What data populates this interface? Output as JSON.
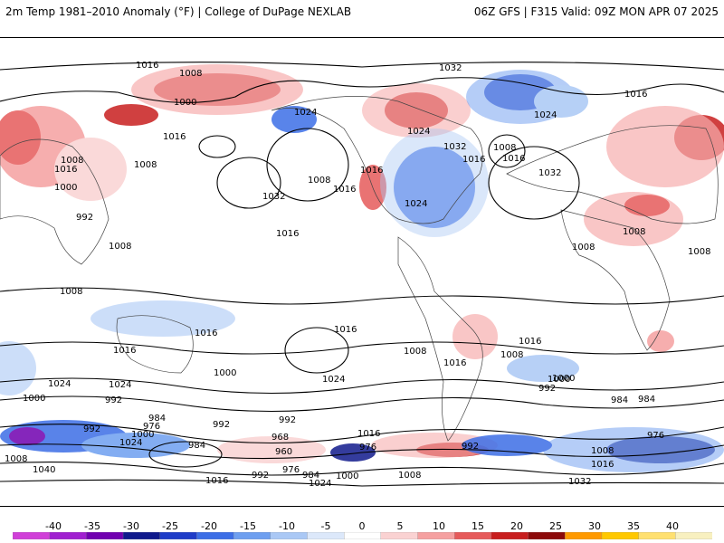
{
  "header": {
    "title_left": "2m Temp 1981–2010 Anomaly (°F) | College of DuPage NEXLAB",
    "title_right": "06Z GFS | F315 Valid: 09Z MON APR 07 2025"
  },
  "colorbar": {
    "ticks": [
      "-40",
      "-35",
      "-30",
      "-25",
      "-20",
      "-15",
      "-10",
      "-5",
      "0",
      "5",
      "10",
      "15",
      "20",
      "25",
      "30",
      "35",
      "40"
    ],
    "colors": [
      "#d040d8",
      "#a020d0",
      "#7000b0",
      "#101a8c",
      "#1e3cc8",
      "#3c6ee6",
      "#6e9ff0",
      "#aac8f5",
      "#dce8fa",
      "#ffffff",
      "#fad2d2",
      "#f5a0a0",
      "#e65a5a",
      "#c81e1e",
      "#8c0a0a",
      "#ff9a00",
      "#ffc800",
      "#ffe070",
      "#f8f0c0"
    ]
  },
  "contour_labels": [
    {
      "text": "1016"
    },
    {
      "text": "1008"
    },
    {
      "text": "1000"
    },
    {
      "text": "1024"
    },
    {
      "text": "1032"
    },
    {
      "text": "1016"
    },
    {
      "text": "1008"
    },
    {
      "text": "1016"
    },
    {
      "text": "1008"
    },
    {
      "text": "1000"
    },
    {
      "text": "992"
    },
    {
      "text": "1008"
    },
    {
      "text": "1008"
    },
    {
      "text": "1016"
    },
    {
      "text": "1016"
    },
    {
      "text": "1024"
    },
    {
      "text": "1024"
    },
    {
      "text": "1000"
    },
    {
      "text": "992"
    },
    {
      "text": "992"
    },
    {
      "text": "1008"
    },
    {
      "text": "1040"
    },
    {
      "text": "984"
    },
    {
      "text": "976"
    },
    {
      "text": "1000"
    },
    {
      "text": "1024"
    },
    {
      "text": "984"
    },
    {
      "text": "1016"
    },
    {
      "text": "992"
    },
    {
      "text": "976"
    },
    {
      "text": "984"
    },
    {
      "text": "968"
    },
    {
      "text": "960"
    },
    {
      "text": "992"
    },
    {
      "text": "1000"
    },
    {
      "text": "1008"
    },
    {
      "text": "1016"
    },
    {
      "text": "1024"
    },
    {
      "text": "1032"
    },
    {
      "text": "1008"
    },
    {
      "text": "1016"
    },
    {
      "text": "1032"
    },
    {
      "text": "1024"
    },
    {
      "text": "1016"
    },
    {
      "text": "1016"
    },
    {
      "text": "1008"
    },
    {
      "text": "1024"
    },
    {
      "text": "1016"
    },
    {
      "text": "1016"
    },
    {
      "text": "1032"
    },
    {
      "text": "1016"
    },
    {
      "text": "1024"
    },
    {
      "text": "1008"
    },
    {
      "text": "1008"
    },
    {
      "text": "1008"
    },
    {
      "text": "1016"
    },
    {
      "text": "1008"
    },
    {
      "text": "1000"
    },
    {
      "text": "992"
    },
    {
      "text": "984"
    },
    {
      "text": "976"
    },
    {
      "text": "992"
    },
    {
      "text": "1008"
    },
    {
      "text": "1016"
    },
    {
      "text": "1032"
    },
    {
      "text": "1000"
    },
    {
      "text": "992"
    },
    {
      "text": "1016"
    },
    {
      "text": "1024"
    },
    {
      "text": "1008"
    },
    {
      "text": "1016"
    },
    {
      "text": "1000"
    },
    {
      "text": "976"
    },
    {
      "text": "984"
    }
  ]
}
